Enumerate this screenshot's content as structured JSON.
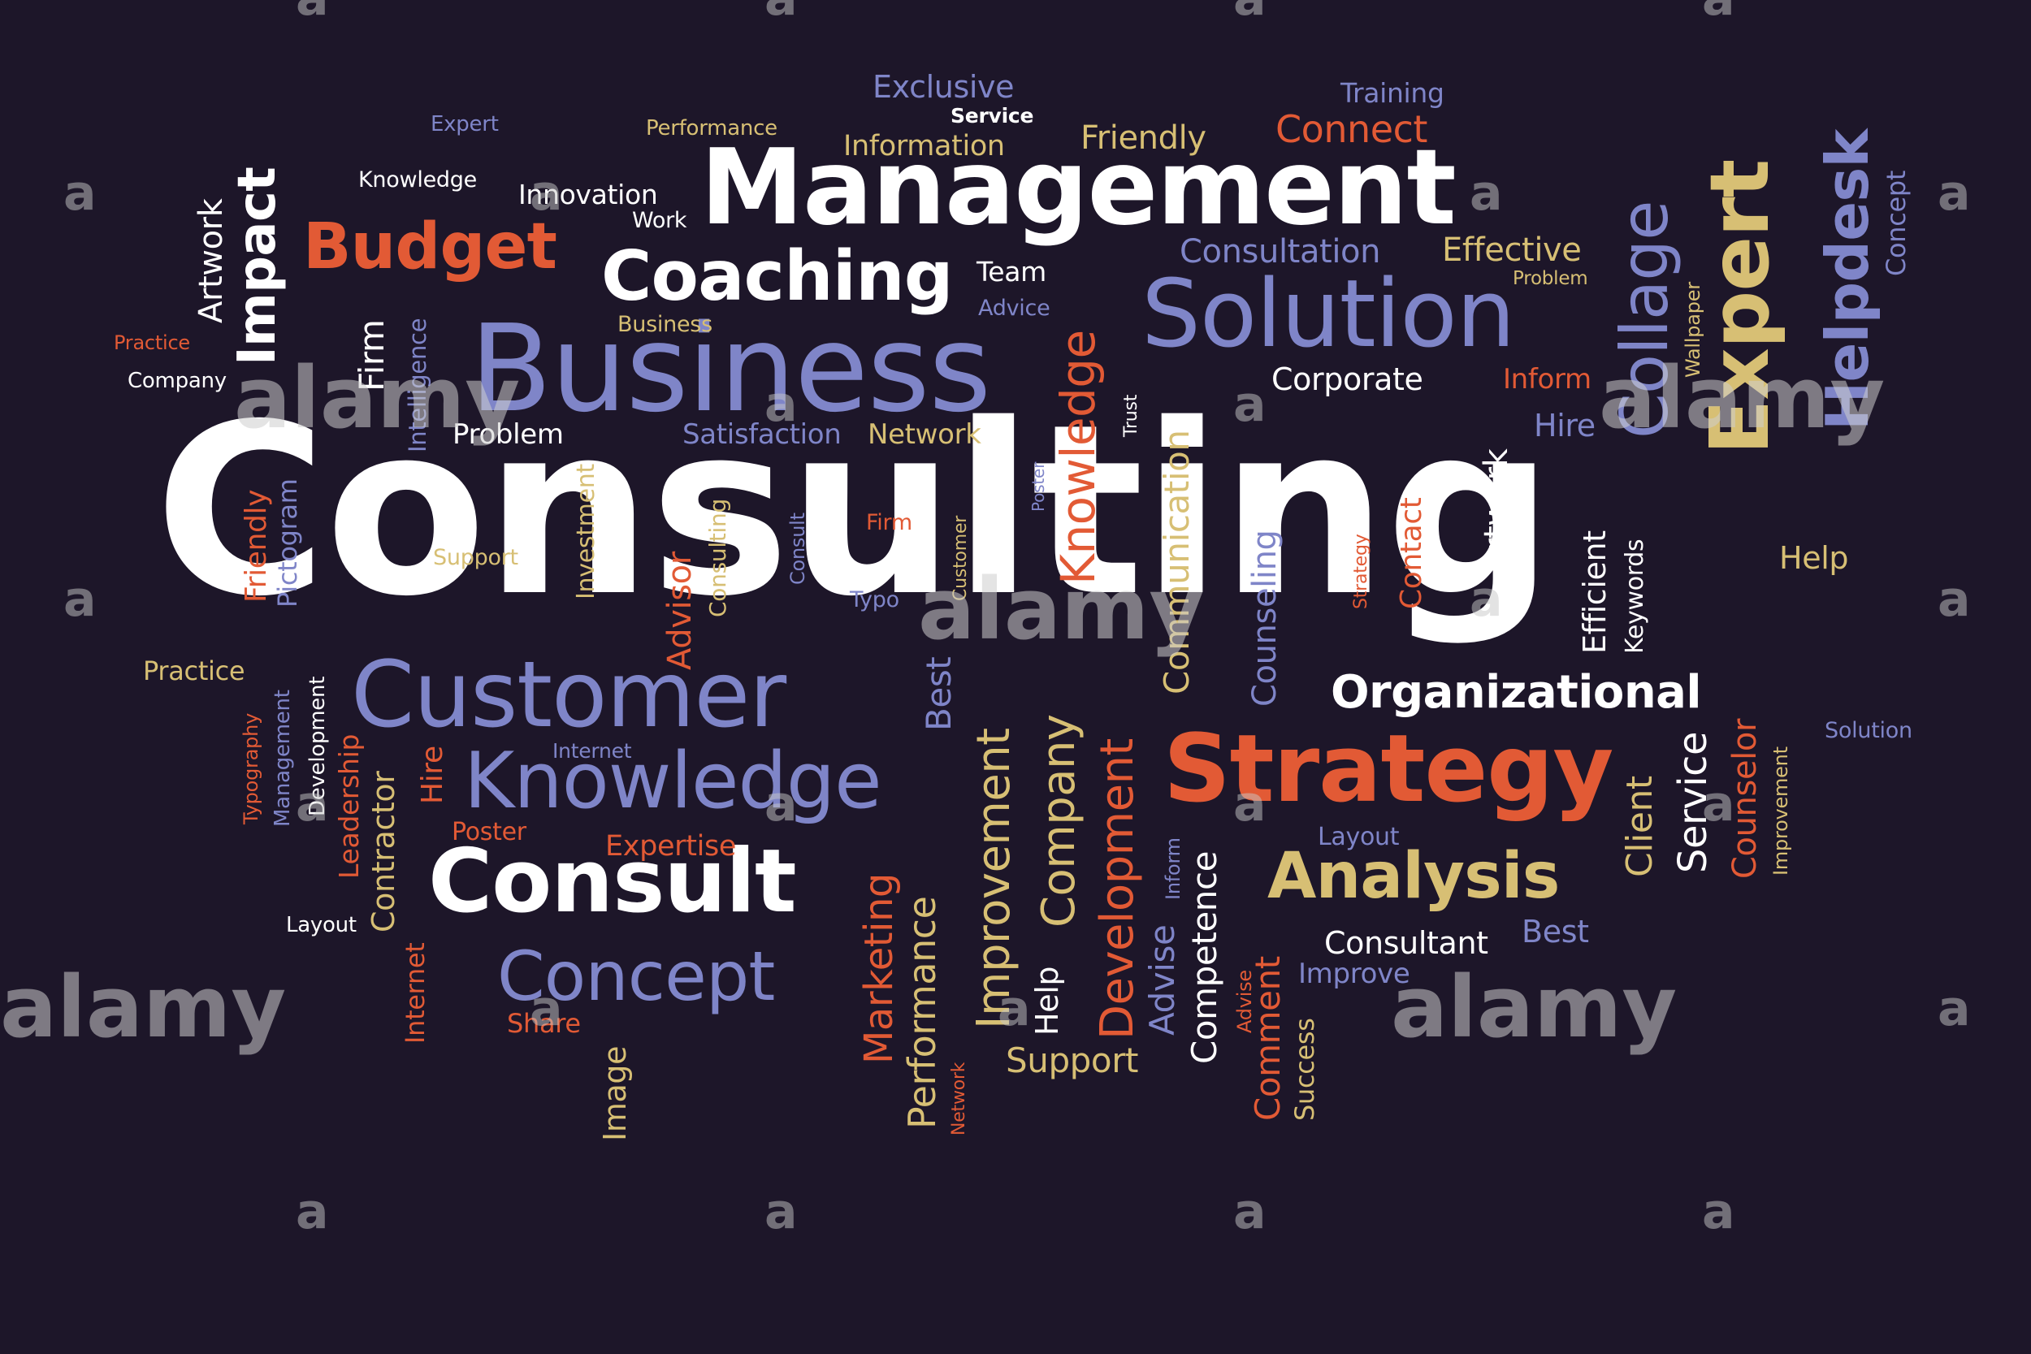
{
  "colors": {
    "background": "#1d1629",
    "white": "#ffffff",
    "periwinkle": "#7f85c8",
    "orange": "#e25a35",
    "gold": "#d7bf74"
  },
  "watermark": {
    "brand": "alamy",
    "mark": "a"
  },
  "words": [
    {
      "text": "Consulting",
      "color": "white"
    },
    {
      "text": "Management",
      "color": "white"
    },
    {
      "text": "Business",
      "color": "periwinkle"
    },
    {
      "text": "Solution",
      "color": "periwinkle"
    },
    {
      "text": "Coaching",
      "color": "white"
    },
    {
      "text": "Budget",
      "color": "orange"
    },
    {
      "text": "Customer",
      "color": "periwinkle"
    },
    {
      "text": "Knowledge",
      "color": "periwinkle"
    },
    {
      "text": "Strategy",
      "color": "orange"
    },
    {
      "text": "Consult",
      "color": "white"
    },
    {
      "text": "Analysis",
      "color": "gold"
    },
    {
      "text": "Concept",
      "color": "periwinkle"
    },
    {
      "text": "Organizational",
      "color": "white"
    },
    {
      "text": "Exclusive",
      "color": "periwinkle"
    },
    {
      "text": "Service",
      "color": "white"
    },
    {
      "text": "Training",
      "color": "periwinkle"
    },
    {
      "text": "Expert",
      "color": "periwinkle"
    },
    {
      "text": "Performance",
      "color": "gold"
    },
    {
      "text": "Information",
      "color": "gold"
    },
    {
      "text": "Friendly",
      "color": "gold"
    },
    {
      "text": "Connect",
      "color": "orange"
    },
    {
      "text": "Knowledge",
      "color": "white"
    },
    {
      "text": "Innovation",
      "color": "white"
    },
    {
      "text": "Work",
      "color": "white"
    },
    {
      "text": "Consultation",
      "color": "periwinkle"
    },
    {
      "text": "Effective",
      "color": "gold"
    },
    {
      "text": "Problem",
      "color": "gold"
    },
    {
      "text": "Team",
      "color": "white"
    },
    {
      "text": "Advice",
      "color": "periwinkle"
    },
    {
      "text": "Business",
      "color": "gold"
    },
    {
      "text": "Practice",
      "color": "orange"
    },
    {
      "text": "Company",
      "color": "white"
    },
    {
      "text": "Corporate",
      "color": "white"
    },
    {
      "text": "Inform",
      "color": "orange"
    },
    {
      "text": "Hire",
      "color": "periwinkle"
    },
    {
      "text": "Problem",
      "color": "white"
    },
    {
      "text": "Satisfaction",
      "color": "periwinkle"
    },
    {
      "text": "Network",
      "color": "gold"
    },
    {
      "text": "Support",
      "color": "gold"
    },
    {
      "text": "Firm",
      "color": "orange"
    },
    {
      "text": "Typo",
      "color": "periwinkle"
    },
    {
      "text": "Help",
      "color": "gold"
    },
    {
      "text": "Practice",
      "color": "gold"
    },
    {
      "text": "Internet",
      "color": "periwinkle"
    },
    {
      "text": "Solution",
      "color": "periwinkle"
    },
    {
      "text": "Poster",
      "color": "orange"
    },
    {
      "text": "Expertise",
      "color": "orange"
    },
    {
      "text": "Layout",
      "color": "periwinkle"
    },
    {
      "text": "Layout",
      "color": "white"
    },
    {
      "text": "Consultant",
      "color": "white"
    },
    {
      "text": "Best",
      "color": "periwinkle"
    },
    {
      "text": "Improve",
      "color": "periwinkle"
    },
    {
      "text": "Share",
      "color": "orange"
    },
    {
      "text": "Support",
      "color": "gold"
    },
    {
      "text": "Artwork",
      "color": "white"
    },
    {
      "text": "Impact",
      "color": "white"
    },
    {
      "text": "Firm",
      "color": "white"
    },
    {
      "text": "Intelligence",
      "color": "periwinkle"
    },
    {
      "text": "Knowledge",
      "color": "orange"
    },
    {
      "text": "Trust",
      "color": "white"
    },
    {
      "text": "Collage",
      "color": "periwinkle"
    },
    {
      "text": "Wallpaper",
      "color": "gold"
    },
    {
      "text": "Expert",
      "color": "gold"
    },
    {
      "text": "Helpdesk",
      "color": "periwinkle"
    },
    {
      "text": "Concept",
      "color": "periwinkle"
    },
    {
      "text": "Friendly",
      "color": "orange"
    },
    {
      "text": "Pictogram",
      "color": "periwinkle"
    },
    {
      "text": "Investment",
      "color": "gold"
    },
    {
      "text": "Advisor",
      "color": "orange"
    },
    {
      "text": "Consulting",
      "color": "gold"
    },
    {
      "text": "Consult",
      "color": "periwinkle"
    },
    {
      "text": "Customer",
      "color": "gold"
    },
    {
      "text": "Poster",
      "color": "periwinkle"
    },
    {
      "text": "Communication",
      "color": "gold"
    },
    {
      "text": "Counseling",
      "color": "periwinkle"
    },
    {
      "text": "Strategy",
      "color": "orange"
    },
    {
      "text": "Contact",
      "color": "orange"
    },
    {
      "text": "Artwork",
      "color": "white"
    },
    {
      "text": "Efficient",
      "color": "white"
    },
    {
      "text": "Keywords",
      "color": "white"
    },
    {
      "text": "Typography",
      "color": "orange"
    },
    {
      "text": "Management",
      "color": "periwinkle"
    },
    {
      "text": "Development",
      "color": "white"
    },
    {
      "text": "Leadership",
      "color": "orange"
    },
    {
      "text": "Contractor",
      "color": "gold"
    },
    {
      "text": "Hire",
      "color": "orange"
    },
    {
      "text": "Best",
      "color": "periwinkle"
    },
    {
      "text": "Improvement",
      "color": "gold"
    },
    {
      "text": "Company",
      "color": "gold"
    },
    {
      "text": "Development",
      "color": "orange"
    },
    {
      "text": "Client",
      "color": "gold"
    },
    {
      "text": "Service",
      "color": "white"
    },
    {
      "text": "Counselor",
      "color": "orange"
    },
    {
      "text": "Improvement",
      "color": "gold"
    },
    {
      "text": "Internet",
      "color": "orange"
    },
    {
      "text": "Image",
      "color": "gold"
    },
    {
      "text": "Marketing",
      "color": "orange"
    },
    {
      "text": "Performance",
      "color": "gold"
    },
    {
      "text": "Network",
      "color": "orange"
    },
    {
      "text": "Help",
      "color": "white"
    },
    {
      "text": "Advise",
      "color": "periwinkle"
    },
    {
      "text": "Inform",
      "color": "periwinkle"
    },
    {
      "text": "Competence",
      "color": "white"
    },
    {
      "text": "Advise",
      "color": "orange"
    },
    {
      "text": "Comment",
      "color": "orange"
    },
    {
      "text": "Success",
      "color": "gold"
    }
  ]
}
